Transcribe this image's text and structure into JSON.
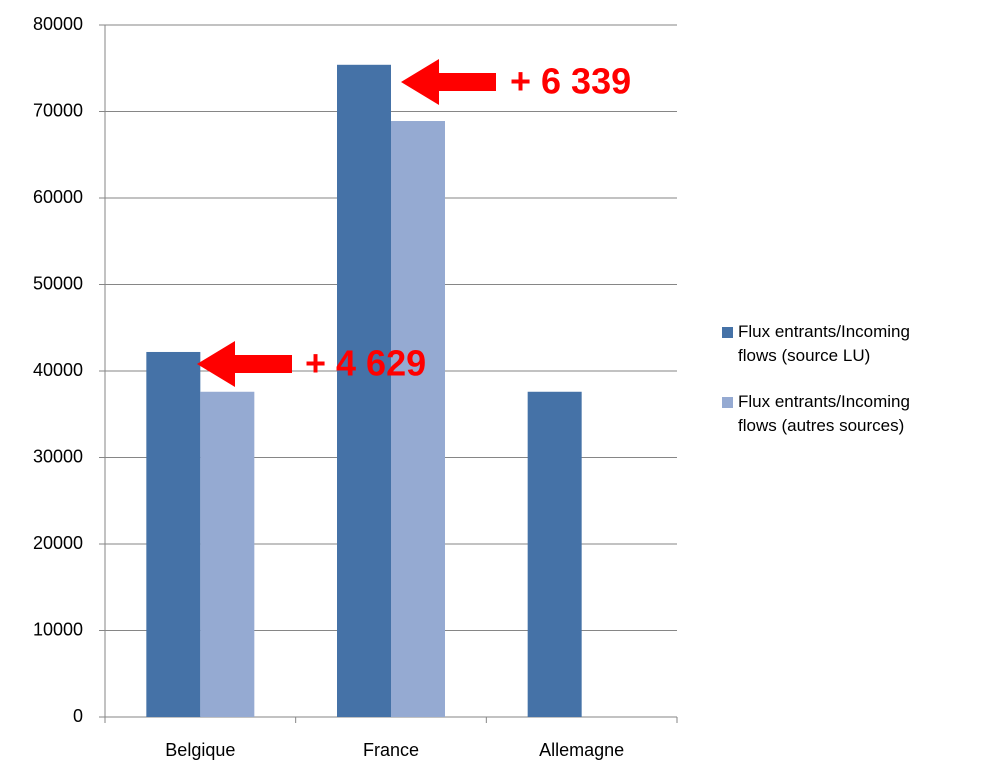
{
  "chart_data": {
    "type": "bar",
    "categories": [
      "Belgique",
      "France",
      "Allemagne"
    ],
    "series": [
      {
        "name": "Flux entrants/Incoming flows (source LU)",
        "color": "#4572a7",
        "values": [
          42200,
          75400,
          37600
        ]
      },
      {
        "name": "Flux entrants/Incoming flows (autres sources)",
        "color": "#95aad2",
        "values": [
          37600,
          68900,
          null
        ]
      }
    ],
    "ylim": [
      0,
      80000
    ],
    "yticks": [
      0,
      10000,
      20000,
      30000,
      40000,
      50000,
      60000,
      70000,
      80000
    ],
    "grid": true,
    "legend": "right",
    "annotations": [
      "+ 4 629",
      "+ 6 339"
    ]
  }
}
